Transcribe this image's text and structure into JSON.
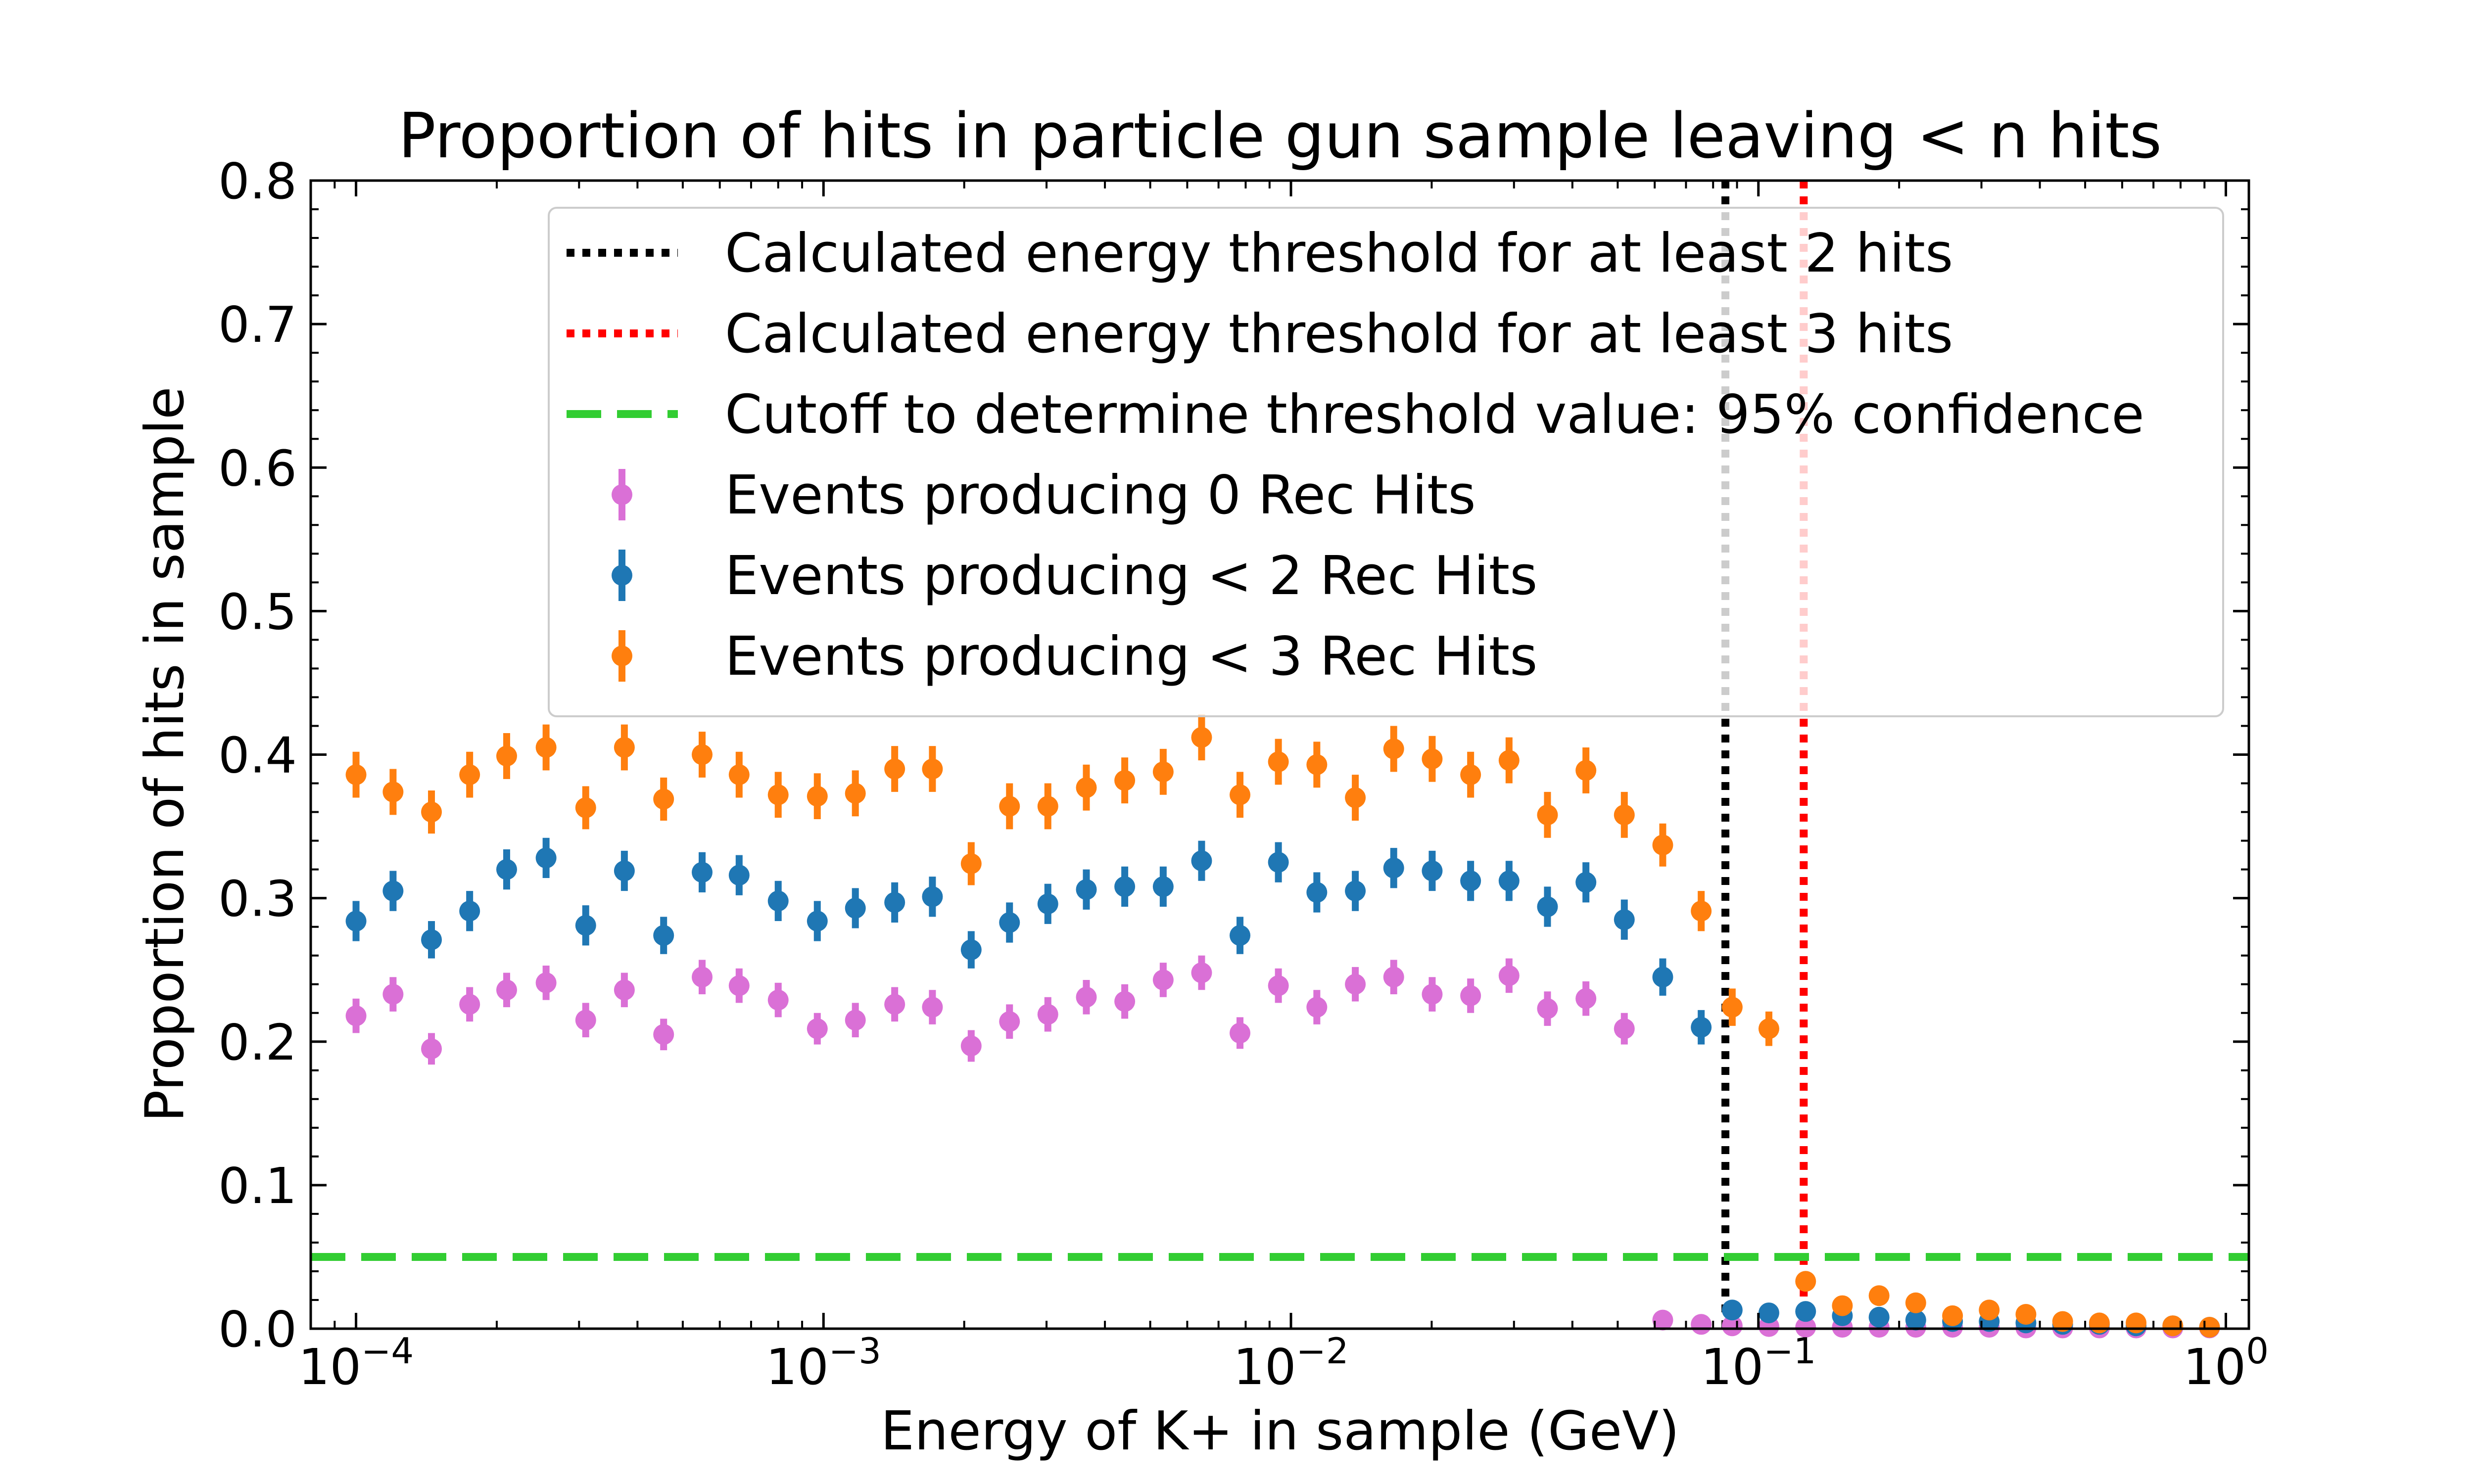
{
  "chart_data": {
    "type": "scatter",
    "title": "Proportion of hits in particle gun sample leaving < n hits",
    "xlabel": "Energy of K+ in sample (GeV)",
    "ylabel": "Proportion of hits in sample",
    "xscale": "log",
    "xlim": [
      8e-05,
      1.12
    ],
    "ylim": [
      0,
      0.8
    ],
    "grid": false,
    "legend_position": "top-right",
    "xticks": [
      {
        "value": 0.0001,
        "base": "10",
        "exp": "−4"
      },
      {
        "value": 0.001,
        "base": "10",
        "exp": "−3"
      },
      {
        "value": 0.01,
        "base": "10",
        "exp": "−2"
      },
      {
        "value": 0.1,
        "base": "10",
        "exp": "−1"
      },
      {
        "value": 1,
        "base": "10",
        "exp": "0"
      }
    ],
    "yticks": [
      {
        "value": 0.0,
        "label": "0.0"
      },
      {
        "value": 0.1,
        "label": "0.1"
      },
      {
        "value": 0.2,
        "label": "0.2"
      },
      {
        "value": 0.3,
        "label": "0.3"
      },
      {
        "value": 0.4,
        "label": "0.4"
      },
      {
        "value": 0.5,
        "label": "0.5"
      },
      {
        "value": 0.6,
        "label": "0.6"
      },
      {
        "value": 0.7,
        "label": "0.7"
      },
      {
        "value": 0.8,
        "label": "0.8"
      }
    ],
    "lines": [
      {
        "name": "Calculated energy threshold for at least 2 hits",
        "orientation": "vertical",
        "x": 0.085,
        "color": "#000000",
        "style": "dotted"
      },
      {
        "name": "Calculated energy threshold for at least 3 hits",
        "orientation": "vertical",
        "x": 0.125,
        "color": "#ff0000",
        "style": "dotted"
      },
      {
        "name": "Cutoff to determine threshold value: 95% confidence",
        "orientation": "horizontal",
        "y": 0.05,
        "color": "#32cd32",
        "style": "dashed"
      }
    ],
    "x": [
      0.0001,
      0.00012,
      0.000145,
      0.000175,
      0.00021,
      0.000255,
      0.00031,
      0.000375,
      0.000455,
      0.00055,
      0.00066,
      0.0008,
      0.00097,
      0.00117,
      0.00142,
      0.00171,
      0.00207,
      0.0025,
      0.00302,
      0.00365,
      0.00441,
      0.00533,
      0.00644,
      0.00778,
      0.0094,
      0.01136,
      0.01373,
      0.01659,
      0.02005,
      0.02423,
      0.02928,
      0.03538,
      0.04276,
      0.05166,
      0.06243,
      0.07544,
      0.0879,
      0.1053,
      0.1262,
      0.1512,
      0.1812,
      0.2171,
      0.2602,
      0.3117,
      0.3735,
      0.4476,
      0.5363,
      0.6426,
      0.77,
      0.9227
    ],
    "series": [
      {
        "name": "Events producing 0 Rec Hits",
        "color": "#da70d6",
        "values": [
          0.218,
          0.233,
          0.195,
          0.226,
          0.236,
          0.241,
          0.215,
          0.236,
          0.205,
          0.245,
          0.239,
          0.229,
          0.209,
          0.215,
          0.226,
          0.224,
          0.197,
          0.214,
          0.219,
          0.231,
          0.228,
          0.243,
          0.248,
          0.206,
          0.239,
          0.224,
          0.24,
          0.245,
          0.233,
          0.232,
          0.246,
          0.223,
          0.23,
          0.209,
          0.006,
          0.003,
          0.002,
          0.0015,
          0.001,
          0.001,
          0.001,
          0.001,
          0.001,
          0.001,
          0.0005,
          0.0005,
          0.0005,
          0.0005,
          0.0005,
          0.0005
        ],
        "errors": [
          0.012,
          0.012,
          0.011,
          0.012,
          0.012,
          0.012,
          0.012,
          0.012,
          0.011,
          0.012,
          0.012,
          0.012,
          0.011,
          0.012,
          0.012,
          0.012,
          0.011,
          0.012,
          0.012,
          0.012,
          0.012,
          0.012,
          0.012,
          0.011,
          0.012,
          0.012,
          0.012,
          0.012,
          0.012,
          0.012,
          0.012,
          0.012,
          0.012,
          0.011,
          0.002,
          0.002,
          0.002,
          0.001,
          0.001,
          0.001,
          0.001,
          0.001,
          0.001,
          0.001,
          0.001,
          0.001,
          0.001,
          0.001,
          0.001,
          0.001
        ]
      },
      {
        "name": "Events producing < 2 Rec Hits",
        "color": "#1f77b4",
        "values": [
          0.284,
          0.305,
          0.271,
          0.291,
          0.32,
          0.328,
          0.281,
          0.319,
          0.274,
          0.318,
          0.316,
          0.298,
          0.284,
          0.293,
          0.297,
          0.301,
          0.264,
          0.283,
          0.296,
          0.306,
          0.308,
          0.308,
          0.326,
          0.274,
          0.325,
          0.304,
          0.305,
          0.321,
          0.319,
          0.312,
          0.312,
          0.294,
          0.311,
          0.285,
          0.245,
          0.21,
          0.013,
          0.011,
          0.012,
          0.009,
          0.008,
          0.006,
          0.005,
          0.005,
          0.004,
          0.003,
          0.003,
          0.002,
          0.002,
          0.001
        ],
        "errors": [
          0.014,
          0.014,
          0.013,
          0.014,
          0.014,
          0.014,
          0.014,
          0.014,
          0.013,
          0.014,
          0.014,
          0.014,
          0.014,
          0.014,
          0.014,
          0.014,
          0.013,
          0.014,
          0.014,
          0.014,
          0.014,
          0.014,
          0.014,
          0.013,
          0.014,
          0.014,
          0.014,
          0.014,
          0.014,
          0.014,
          0.014,
          0.014,
          0.014,
          0.014,
          0.013,
          0.012,
          0.003,
          0.003,
          0.003,
          0.002,
          0.002,
          0.002,
          0.002,
          0.002,
          0.002,
          0.001,
          0.001,
          0.001,
          0.001,
          0.001
        ]
      },
      {
        "name": "Events producing < 3 Rec Hits",
        "color": "#ff7f0e",
        "values": [
          0.386,
          0.374,
          0.36,
          0.386,
          0.399,
          0.405,
          0.363,
          0.405,
          0.369,
          0.4,
          0.386,
          0.372,
          0.371,
          0.373,
          0.39,
          0.39,
          0.324,
          0.364,
          0.364,
          0.377,
          0.382,
          0.388,
          0.412,
          0.372,
          0.395,
          0.393,
          0.37,
          0.404,
          0.397,
          0.386,
          0.396,
          0.358,
          0.389,
          0.358,
          0.337,
          0.291,
          0.224,
          0.209,
          0.033,
          0.016,
          0.023,
          0.018,
          0.009,
          0.013,
          0.01,
          0.005,
          0.004,
          0.004,
          0.002,
          0.001
        ],
        "errors": [
          0.016,
          0.016,
          0.015,
          0.016,
          0.016,
          0.016,
          0.015,
          0.016,
          0.015,
          0.016,
          0.016,
          0.016,
          0.016,
          0.016,
          0.016,
          0.016,
          0.015,
          0.016,
          0.016,
          0.016,
          0.016,
          0.016,
          0.016,
          0.016,
          0.016,
          0.016,
          0.016,
          0.016,
          0.016,
          0.016,
          0.016,
          0.016,
          0.016,
          0.016,
          0.015,
          0.014,
          0.013,
          0.012,
          0.005,
          0.004,
          0.004,
          0.004,
          0.003,
          0.003,
          0.003,
          0.002,
          0.002,
          0.002,
          0.001,
          0.001
        ]
      }
    ]
  }
}
